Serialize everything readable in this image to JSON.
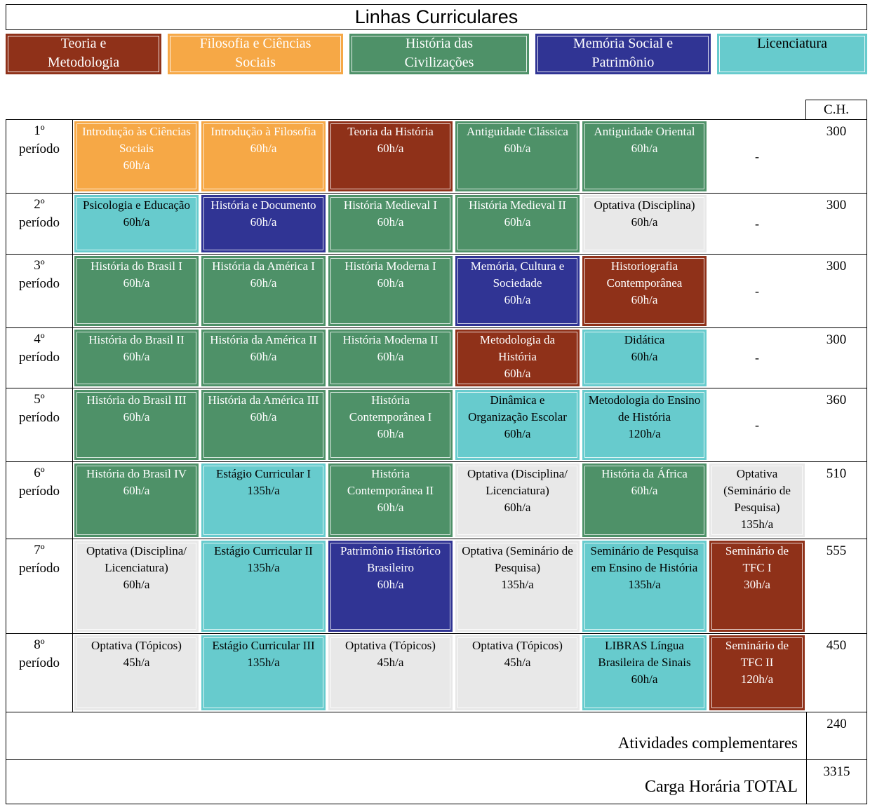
{
  "title": "Linhas Curriculares",
  "ch_header": "C.H.",
  "colors": {
    "tm": "#8F3119",
    "fcs": "#F6A846",
    "hc": "#4E9168",
    "msp": "#303494",
    "lic": "#67CBCD",
    "opt": "#E8E8E8"
  },
  "legend": {
    "items": [
      {
        "label": "Teoria e Metodologia",
        "line": "tm"
      },
      {
        "label": "Filosofia e Ciências Sociais",
        "line": "fcs"
      },
      {
        "label": "História das Civilizações",
        "line": "hc"
      },
      {
        "label": "Memória Social e Patrimônio",
        "line": "msp"
      },
      {
        "label": "Licenciatura",
        "line": "lic"
      }
    ]
  },
  "rows": [
    {
      "period": "1º período",
      "ch": "300",
      "cells": [
        {
          "name": "Introdução às Ciências Sociais",
          "hours": "60h/a",
          "line": "fcs"
        },
        {
          "name": "Introdução à Filosofia",
          "hours": "60h/a",
          "line": "fcs"
        },
        {
          "name": "Teoria da História",
          "hours": "60h/a",
          "line": "tm"
        },
        {
          "name": "Antiguidade Clássica",
          "hours": "60h/a",
          "line": "hc"
        },
        {
          "name": "Antiguidade Oriental",
          "hours": "60h/a",
          "line": "hc"
        },
        {
          "type": "dash",
          "text": "-"
        }
      ]
    },
    {
      "period": "2º período",
      "ch": "300",
      "cells": [
        {
          "name": "Psicologia e Educação",
          "hours": "60h/a",
          "line": "lic"
        },
        {
          "name": "História e Documento",
          "hours": "60h/a",
          "line": "msp"
        },
        {
          "name": "História Medieval I",
          "hours": "60h/a",
          "line": "hc"
        },
        {
          "name": "História Medieval II",
          "hours": "60h/a",
          "line": "hc"
        },
        {
          "name": "Optativa (Disciplina)",
          "hours": "60h/a",
          "line": "opt"
        },
        {
          "type": "dash",
          "text": "-"
        }
      ]
    },
    {
      "period": "3º período",
      "ch": "300",
      "cells": [
        {
          "name": "História do Brasil I",
          "hours": "60h/a",
          "line": "hc"
        },
        {
          "name": "História da América I",
          "hours": "60h/a",
          "line": "hc"
        },
        {
          "name": "História Moderna I",
          "hours": "60h/a",
          "line": "hc"
        },
        {
          "name": "Memória, Cultura e Sociedade",
          "hours": "60h/a",
          "line": "msp"
        },
        {
          "name": "Historiografia Contemporânea",
          "hours": "60h/a",
          "line": "tm"
        },
        {
          "type": "dash",
          "text": "-"
        }
      ]
    },
    {
      "period": "4º período",
      "ch": "300",
      "cells": [
        {
          "name": "História do Brasil II",
          "hours": "60h/a",
          "line": "hc"
        },
        {
          "name": "História da América II",
          "hours": "60h/a",
          "line": "hc"
        },
        {
          "name": "História Moderna II",
          "hours": "60h/a",
          "line": "hc"
        },
        {
          "name": "Metodologia da História",
          "hours": "60h/a",
          "line": "tm"
        },
        {
          "name": "Didática",
          "hours": "60h/a",
          "line": "lic"
        },
        {
          "type": "dash",
          "text": "-"
        }
      ]
    },
    {
      "period": "5º período",
      "ch": "360",
      "cells": [
        {
          "name": "História do Brasil III",
          "hours": "60h/a",
          "line": "hc"
        },
        {
          "name": "História da América III",
          "hours": "60h/a",
          "line": "hc"
        },
        {
          "name": "História Contemporânea I",
          "hours": "60h/a",
          "line": "hc"
        },
        {
          "name": "Dinâmica e Organização Escolar",
          "hours": "60h/a",
          "line": "lic"
        },
        {
          "name": "Metodologia do Ensino de História",
          "hours": "120h/a",
          "line": "lic"
        },
        {
          "type": "dash",
          "text": "-"
        }
      ]
    },
    {
      "period": "6º período",
      "ch": "510",
      "cells": [
        {
          "name": "História do Brasil IV",
          "hours": "60h/a",
          "line": "hc"
        },
        {
          "name": "Estágio Curricular I",
          "hours": "135h/a",
          "line": "lic"
        },
        {
          "name": "História Contemporânea II",
          "hours": "60h/a",
          "line": "hc"
        },
        {
          "name": "Optativa (Disciplina/ Licenciatura)",
          "hours": "60h/a",
          "line": "opt"
        },
        {
          "name": "História da África",
          "hours": "60h/a",
          "line": "hc"
        },
        {
          "name": "Optativa (Seminário de Pesquisa)",
          "hours": "135h/a",
          "line": "opt"
        }
      ]
    },
    {
      "period": "7º período",
      "ch": "555",
      "cells": [
        {
          "name": "Optativa (Disciplina/ Licenciatura)",
          "hours": "60h/a",
          "line": "opt"
        },
        {
          "name": "Estágio Curricular II",
          "hours": "135h/a",
          "line": "lic"
        },
        {
          "name": "Patrimônio Histórico Brasileiro",
          "hours": "60h/a",
          "line": "msp"
        },
        {
          "name": "Optativa (Seminário de Pesquisa)",
          "hours": "135h/a",
          "line": "opt"
        },
        {
          "name": "Seminário de Pesquisa em Ensino de História",
          "hours": "135h/a",
          "line": "lic"
        },
        {
          "name": "Seminário de TFC I",
          "hours": "30h/a",
          "line": "tm"
        }
      ]
    },
    {
      "period": "8º período",
      "ch": "450",
      "cells": [
        {
          "name": "Optativa (Tópicos)",
          "hours": "45h/a",
          "line": "opt"
        },
        {
          "name": "Estágio Curricular III",
          "hours": "135h/a",
          "line": "lic"
        },
        {
          "name": "Optativa (Tópicos)",
          "hours": "45h/a",
          "line": "opt"
        },
        {
          "name": "Optativa (Tópicos)",
          "hours": "45h/a",
          "line": "opt"
        },
        {
          "name": "LIBRAS Língua Brasileira de Sinais",
          "hours": "60h/a",
          "line": "lic"
        },
        {
          "name": "Seminário de TFC II",
          "hours": "120h/a",
          "line": "tm"
        }
      ]
    }
  ],
  "footer": {
    "rows": [
      {
        "label": "Atividades complementares",
        "value": "240"
      },
      {
        "label": "Carga Horária TOTAL",
        "value": "3315"
      }
    ]
  }
}
